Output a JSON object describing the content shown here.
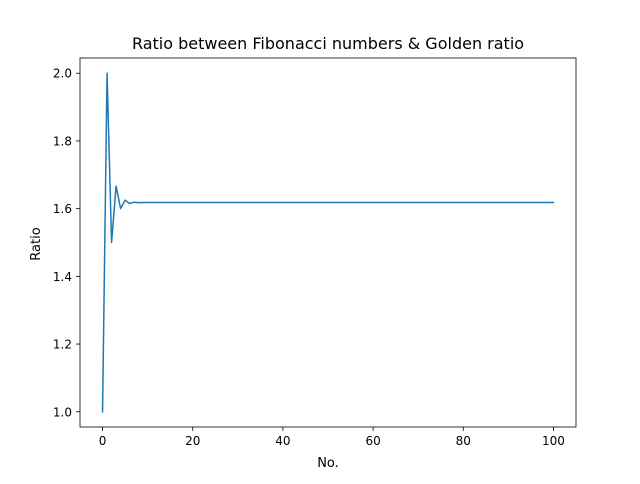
{
  "chart_data": {
    "type": "line",
    "title": "Ratio between Fibonacci numbers & Golden ratio",
    "xlabel": "No.",
    "ylabel": "Ratio",
    "xlim": [
      -5,
      105
    ],
    "ylim": [
      0.955,
      2.045
    ],
    "xticks": [
      0,
      20,
      40,
      60,
      80,
      100
    ],
    "yticks": [
      1.0,
      1.2,
      1.4,
      1.6,
      1.8,
      2.0
    ],
    "xtick_labels": [
      "0",
      "20",
      "40",
      "60",
      "80",
      "100"
    ],
    "ytick_labels": [
      "1.0",
      "1.2",
      "1.4",
      "1.6",
      "1.8",
      "2.0"
    ],
    "grid": false,
    "series": [
      {
        "color": "#1f77b4",
        "x": [
          0,
          1,
          2,
          3,
          4,
          5,
          6,
          7,
          8,
          9,
          10,
          100
        ],
        "y": [
          1.0,
          2.0,
          1.5,
          1.6667,
          1.6,
          1.625,
          1.6154,
          1.619,
          1.6176,
          1.6182,
          1.618,
          1.618
        ]
      }
    ]
  }
}
